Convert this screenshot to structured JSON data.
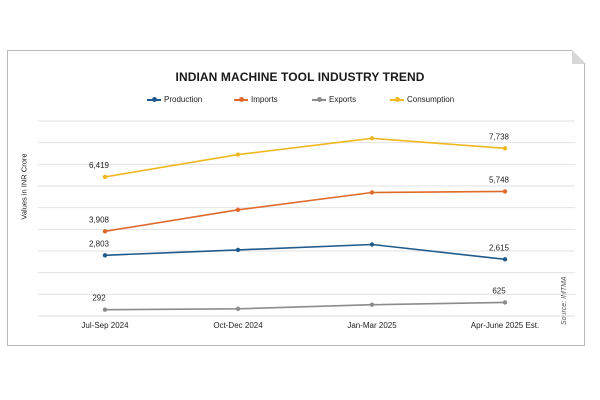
{
  "chart_data": {
    "type": "line",
    "title": "INDIAN MACHINE TOOL INDUSTRY TREND",
    "ylabel": "Values in INR Crore",
    "xlabel": "",
    "categories": [
      "Jul-Sep 2024",
      "Oct-Dec 2024",
      "Jan-Mar 2025",
      "Apr-June 2025 Est."
    ],
    "ylim": [
      0,
      9000
    ],
    "grid": true,
    "legend_position": "top",
    "source": "Source: IMTMA",
    "series": [
      {
        "name": "Production",
        "color": "#1f5a8a",
        "values": [
          2803,
          3050,
          3300,
          2615
        ],
        "labels": [
          "2,803",
          null,
          null,
          "2,615"
        ]
      },
      {
        "name": "Imports",
        "color": "#e06a2c",
        "values": [
          3908,
          4900,
          5700,
          5748
        ],
        "labels": [
          "3,908",
          null,
          null,
          "5,748"
        ]
      },
      {
        "name": "Exports",
        "color": "#8c8c8c",
        "values": [
          292,
          330,
          520,
          625
        ],
        "labels": [
          "292",
          null,
          null,
          "625"
        ]
      },
      {
        "name": "Consumption",
        "color": "#f0b820",
        "values": [
          6419,
          7450,
          8200,
          7738
        ],
        "labels": [
          "6,419",
          null,
          null,
          "7,738"
        ]
      }
    ]
  }
}
